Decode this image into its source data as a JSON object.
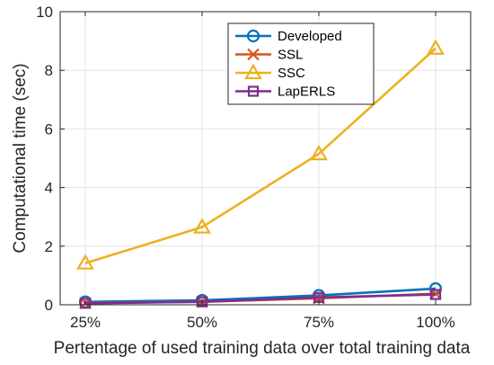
{
  "chart_data": {
    "type": "line",
    "categories": [
      "25%",
      "50%",
      "75%",
      "100%"
    ],
    "xlabel": "Pertentage of used training data over total training data",
    "ylabel": "Computational time (sec)",
    "ylim": [
      0,
      10
    ],
    "yticks": [
      0,
      2,
      4,
      6,
      8,
      10
    ],
    "grid": true,
    "legend_position": "top-right",
    "series": [
      {
        "name": "Developed",
        "values": [
          0.1,
          0.15,
          0.32,
          0.55
        ],
        "color": "#0072BD",
        "marker": "circle"
      },
      {
        "name": "SSL",
        "values": [
          0.06,
          0.1,
          0.22,
          0.38
        ],
        "color": "#D95319",
        "marker": "x"
      },
      {
        "name": "SSC",
        "values": [
          1.42,
          2.65,
          5.15,
          8.75
        ],
        "color": "#EDB120",
        "marker": "triangle"
      },
      {
        "name": "LapERLS",
        "values": [
          0.05,
          0.1,
          0.25,
          0.35
        ],
        "color": "#7E2F8E",
        "marker": "square"
      }
    ]
  }
}
